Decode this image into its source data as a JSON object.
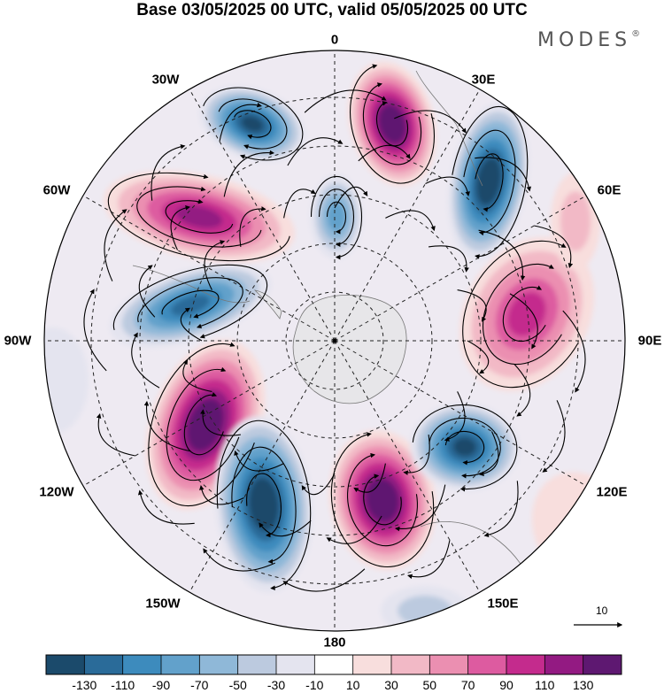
{
  "header": {
    "title": "Base 03/05/2025 00 UTC, valid 05/05/2025 00 UTC",
    "brand": "MODES",
    "brand_mark": "®"
  },
  "map": {
    "projection": "north polar stereographic",
    "longitude_labels": {
      "top": "0",
      "top_right": "30E",
      "right_upper": "60E",
      "right": "90E",
      "right_lower": "120E",
      "bottom_right": "150E",
      "bottom": "180",
      "bottom_left": "150W",
      "left_lower": "120W",
      "left": "90W",
      "left_upper": "60W",
      "top_left": "30W"
    },
    "reference_vector_label": "10"
  },
  "colorbar": {
    "labels": [
      "-130",
      "-110",
      "-90",
      "-70",
      "-50",
      "-30",
      "-10",
      "10",
      "30",
      "50",
      "70",
      "90",
      "110",
      "130"
    ],
    "colors": [
      "#1b4a6b",
      "#2a6b99",
      "#3d8bbd",
      "#62a1cb",
      "#8fb8d8",
      "#bccadf",
      "#e4e4ef",
      "#ffffff",
      "#f8dedd",
      "#f2b9c6",
      "#eb8fb1",
      "#dd5ba0",
      "#c42b8d",
      "#931a82",
      "#5e1871"
    ]
  }
}
